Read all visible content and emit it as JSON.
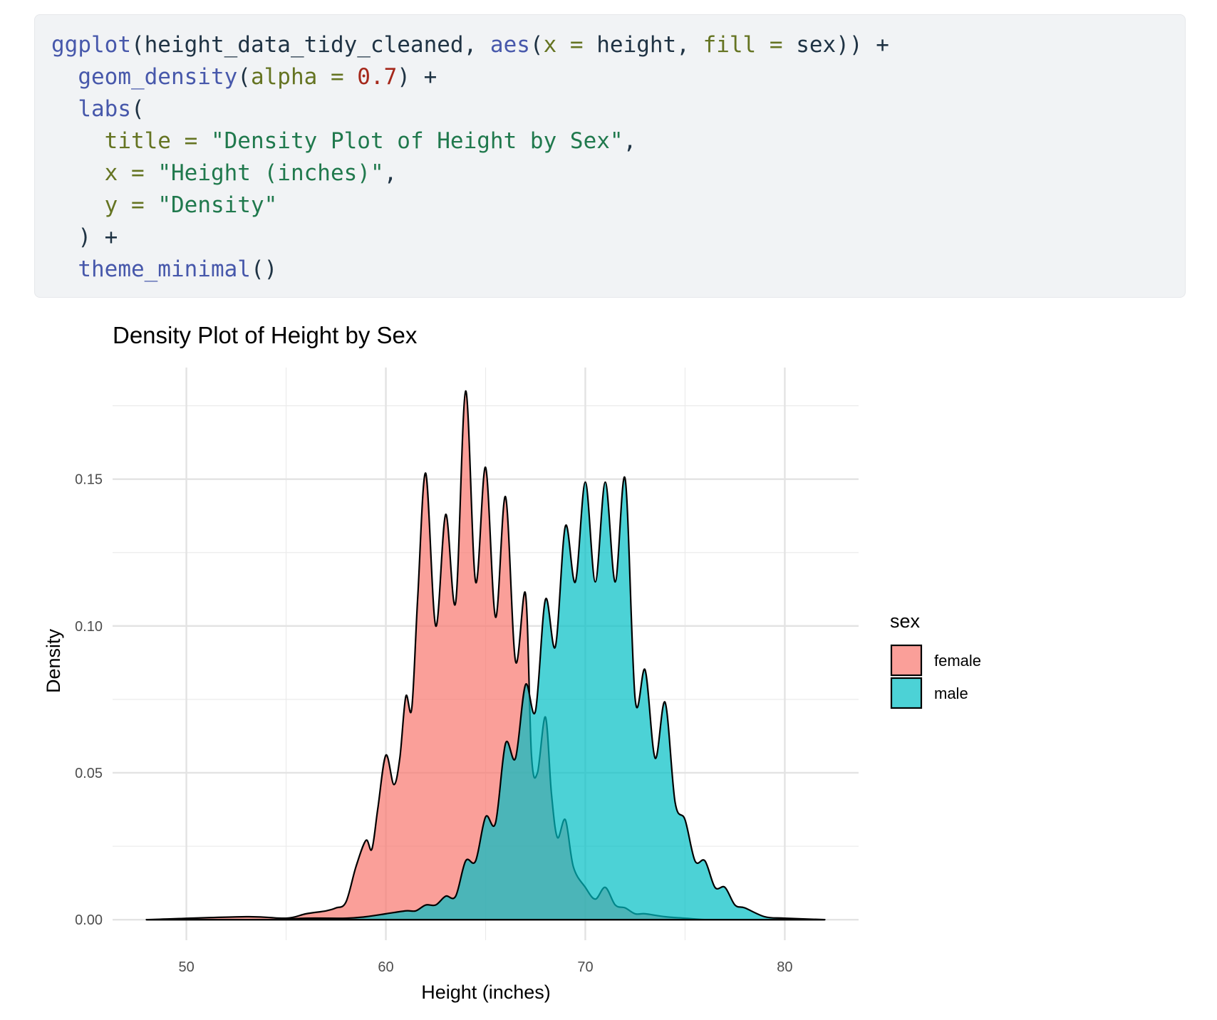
{
  "code": {
    "lines": [
      [
        [
          "fn",
          "ggplot"
        ],
        [
          "plain",
          "(height_data_tidy_cleaned, "
        ],
        [
          "fn",
          "aes"
        ],
        [
          "plain",
          "("
        ],
        [
          "arg",
          "x ="
        ],
        [
          "plain",
          " height, "
        ],
        [
          "arg",
          "fill ="
        ],
        [
          "plain",
          " sex)) +"
        ]
      ],
      [
        [
          "plain",
          "  "
        ],
        [
          "fn",
          "geom_density"
        ],
        [
          "plain",
          "("
        ],
        [
          "arg",
          "alpha ="
        ],
        [
          "plain",
          " "
        ],
        [
          "num",
          "0.7"
        ],
        [
          "plain",
          ") +"
        ]
      ],
      [
        [
          "plain",
          "  "
        ],
        [
          "fn",
          "labs"
        ],
        [
          "plain",
          "("
        ]
      ],
      [
        [
          "plain",
          "    "
        ],
        [
          "arg",
          "title ="
        ],
        [
          "plain",
          " "
        ],
        [
          "str",
          "\"Density Plot of Height by Sex\""
        ],
        [
          "plain",
          ","
        ]
      ],
      [
        [
          "plain",
          "    "
        ],
        [
          "arg",
          "x ="
        ],
        [
          "plain",
          " "
        ],
        [
          "str",
          "\"Height (inches)\""
        ],
        [
          "plain",
          ","
        ]
      ],
      [
        [
          "plain",
          "    "
        ],
        [
          "arg",
          "y ="
        ],
        [
          "plain",
          " "
        ],
        [
          "str",
          "\"Density\""
        ]
      ],
      [
        [
          "plain",
          "  ) +"
        ]
      ],
      [
        [
          "plain",
          "  "
        ],
        [
          "fn",
          "theme_minimal"
        ],
        [
          "plain",
          "()"
        ]
      ]
    ]
  },
  "chart_data": {
    "type": "area",
    "title": "Density Plot of Height by Sex",
    "xlabel": "Height (inches)",
    "ylabel": "Density",
    "xlim": [
      46.3,
      83.7
    ],
    "ylim": [
      -0.007,
      0.188
    ],
    "x_ticks": [
      50,
      60,
      70,
      80
    ],
    "y_ticks": [
      0.0,
      0.05,
      0.1,
      0.15
    ],
    "y_tick_labels": [
      "0.00",
      "0.05",
      "0.10",
      "0.15"
    ],
    "grid": true,
    "legend": {
      "title": "sex",
      "position": "right"
    },
    "alpha": 0.7,
    "series": [
      {
        "name": "female",
        "color": "#f8766d",
        "x": [
          48,
          53,
          55,
          56,
          57,
          57.5,
          58,
          58.5,
          59,
          59.3,
          59.6,
          60,
          60.4,
          60.7,
          61,
          61.3,
          61.6,
          62,
          62.5,
          63,
          63.5,
          64,
          64.5,
          65,
          65.5,
          66,
          66.5,
          67,
          67.3,
          67.6,
          68,
          68.3,
          68.6,
          69,
          69.4,
          70,
          70.5,
          71,
          71.5,
          72,
          72.5,
          73,
          74,
          75,
          76,
          77,
          78,
          82
        ],
        "y": [
          0.0,
          0.001,
          0.0005,
          0.002,
          0.003,
          0.004,
          0.006,
          0.018,
          0.027,
          0.024,
          0.038,
          0.056,
          0.046,
          0.055,
          0.076,
          0.072,
          0.11,
          0.152,
          0.1,
          0.138,
          0.108,
          0.18,
          0.115,
          0.154,
          0.103,
          0.144,
          0.088,
          0.111,
          0.056,
          0.05,
          0.069,
          0.043,
          0.028,
          0.034,
          0.018,
          0.011,
          0.007,
          0.011,
          0.005,
          0.004,
          0.002,
          0.002,
          0.001,
          0.0005,
          0.0,
          0.0,
          0.0,
          0.0
        ]
      },
      {
        "name": "male",
        "color": "#00bfc4",
        "x": [
          48,
          54,
          56,
          58,
          59,
          60,
          61,
          61.5,
          62,
          62.5,
          63,
          63.5,
          64,
          64.5,
          65,
          65.5,
          66,
          66.5,
          67,
          67.5,
          68,
          68.5,
          69,
          69.5,
          70,
          70.5,
          71,
          71.5,
          72,
          72.5,
          73,
          73.5,
          74,
          74.5,
          75,
          75.5,
          76,
          76.5,
          77,
          77.5,
          78,
          79,
          80,
          82
        ],
        "y": [
          0.0,
          0.0,
          0.0005,
          0.0005,
          0.001,
          0.002,
          0.003,
          0.003,
          0.005,
          0.005,
          0.008,
          0.008,
          0.02,
          0.02,
          0.035,
          0.033,
          0.06,
          0.055,
          0.08,
          0.071,
          0.109,
          0.093,
          0.134,
          0.115,
          0.149,
          0.115,
          0.149,
          0.115,
          0.15,
          0.075,
          0.085,
          0.055,
          0.074,
          0.04,
          0.034,
          0.02,
          0.02,
          0.011,
          0.011,
          0.005,
          0.004,
          0.001,
          0.0005,
          0.0
        ]
      }
    ]
  }
}
